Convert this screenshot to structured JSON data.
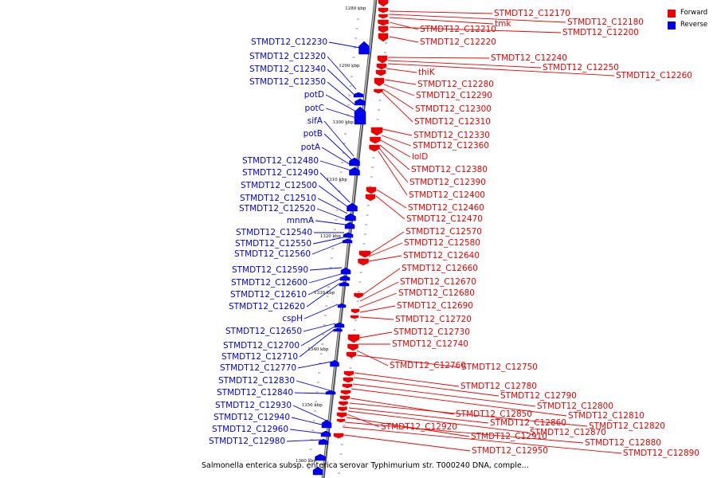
{
  "legend": {
    "forward": {
      "label": "Forward",
      "color": "#ee0000"
    },
    "reverse": {
      "label": "Reverse",
      "color": "#0000ee"
    }
  },
  "caption": "Salmonella enterica subsp. enterica serovar Typhimurium str. T000240 DNA, comple...",
  "ticks": [
    "1280 kbp",
    "1290 kbp",
    "1300 kbp",
    "1310 kbp",
    "1320 kbp",
    "1330 kbp",
    "1340 kbp",
    "1350 kbp",
    "1360 kbp"
  ],
  "reverse_labels": [
    "STMDT12_C12230",
    "STMDT12_C12320",
    "STMDT12_C12340",
    "STMDT12_C12350",
    "potD",
    "potC",
    "sifA",
    "potB",
    "potA",
    "STMDT12_C12480",
    "STMDT12_C12490",
    "STMDT12_C12500",
    "STMDT12_C12510",
    "STMDT12_C12520",
    "mnmA",
    "STMDT12_C12540",
    "STMDT12_C12550",
    "STMDT12_C12560",
    "STMDT12_C12590",
    "STMDT12_C12600",
    "STMDT12_C12610",
    "STMDT12_C12620",
    "cspH",
    "STMDT12_C12650",
    "STMDT12_C12700",
    "STMDT12_C12710",
    "STMDT12_C12770",
    "STMDT12_C12830",
    "STMDT12_C12840",
    "STMDT12_C12930",
    "STMDT12_C12940",
    "STMDT12_C12960",
    "STMDT12_C12980"
  ],
  "forward_labels": [
    "STMDT12_C12170",
    "STMDT12_C12180",
    "tmk",
    "STMDT12_C12210",
    "STMDT12_C12200",
    "STMDT12_C12220",
    "STMDT12_C12240",
    "STMDT12_C12250",
    "STMDT12_C12260",
    "thiK",
    "STMDT12_C12280",
    "STMDT12_C12290",
    "STMDT12_C12300",
    "STMDT12_C12310",
    "STMDT12_C12330",
    "STMDT12_C12360",
    "lolD",
    "STMDT12_C12380",
    "STMDT12_C12390",
    "STMDT12_C12400",
    "STMDT12_C12460",
    "STMDT12_C12470",
    "STMDT12_C12570",
    "STMDT12_C12580",
    "STMDT12_C12640",
    "STMDT12_C12660",
    "STMDT12_C12670",
    "STMDT12_C12680",
    "STMDT12_C12690",
    "STMDT12_C12720",
    "STMDT12_C12730",
    "STMDT12_C12740",
    "STMDT12_C12760",
    "STMDT12_C12750",
    "STMDT12_C12780",
    "STMDT12_C12790",
    "STMDT12_C12800",
    "STMDT12_C12810",
    "STMDT12_C12850",
    "STMDT12_C12820",
    "STMDT12_C12860",
    "STMDT12_C12870",
    "STMDT12_C12920",
    "STMDT12_C12910",
    "STMDT12_C12880",
    "STMDT12_C12950",
    "STMDT12_C12890"
  ]
}
